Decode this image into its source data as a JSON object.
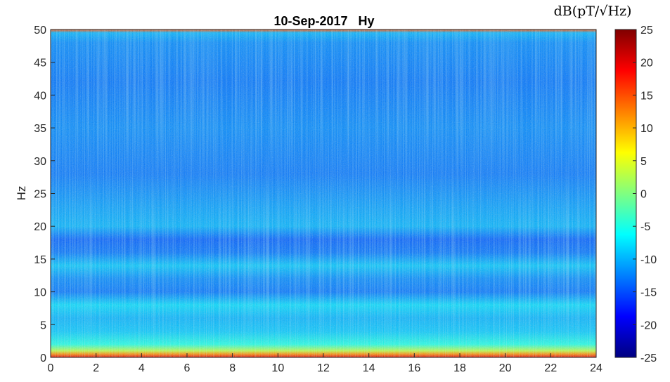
{
  "chart_data": {
    "type": "heatmap",
    "title": "10-Sep-2017   Hy",
    "ylabel": "Hz",
    "xlabel": "",
    "colorbar_label": "dB(pT/√Hz)",
    "xlim": [
      0,
      24
    ],
    "ylim": [
      0,
      50
    ],
    "clim": [
      -25,
      25
    ],
    "x_ticks": [
      "0",
      "2",
      "4",
      "6",
      "8",
      "10",
      "12",
      "14",
      "16",
      "18",
      "20",
      "22",
      "24"
    ],
    "y_ticks": [
      "0",
      "5",
      "10",
      "15",
      "20",
      "25",
      "30",
      "35",
      "40",
      "45",
      "50"
    ],
    "colorbar_ticks": [
      "-25",
      "-20",
      "-15",
      "-10",
      "-5",
      "0",
      "5",
      "10",
      "15",
      "20",
      "25"
    ],
    "colormap": "jet",
    "grid": false,
    "frequency_profile_db": [
      {
        "hz": 0,
        "db": 20
      },
      {
        "hz": 0.5,
        "db": 12
      },
      {
        "hz": 1,
        "db": 3
      },
      {
        "hz": 2,
        "db": -5
      },
      {
        "hz": 4,
        "db": -9
      },
      {
        "hz": 6,
        "db": -10
      },
      {
        "hz": 8,
        "db": -8
      },
      {
        "hz": 10,
        "db": -13
      },
      {
        "hz": 12,
        "db": -12
      },
      {
        "hz": 14,
        "db": -9
      },
      {
        "hz": 16,
        "db": -13
      },
      {
        "hz": 18,
        "db": -14
      },
      {
        "hz": 20,
        "db": -10
      },
      {
        "hz": 23,
        "db": -11
      },
      {
        "hz": 28,
        "db": -13
      },
      {
        "hz": 35,
        "db": -12
      },
      {
        "hz": 42,
        "db": -13
      },
      {
        "hz": 48,
        "db": -12
      },
      {
        "hz": 49.5,
        "db": -10
      },
      {
        "hz": 50,
        "db": 15
      }
    ]
  }
}
